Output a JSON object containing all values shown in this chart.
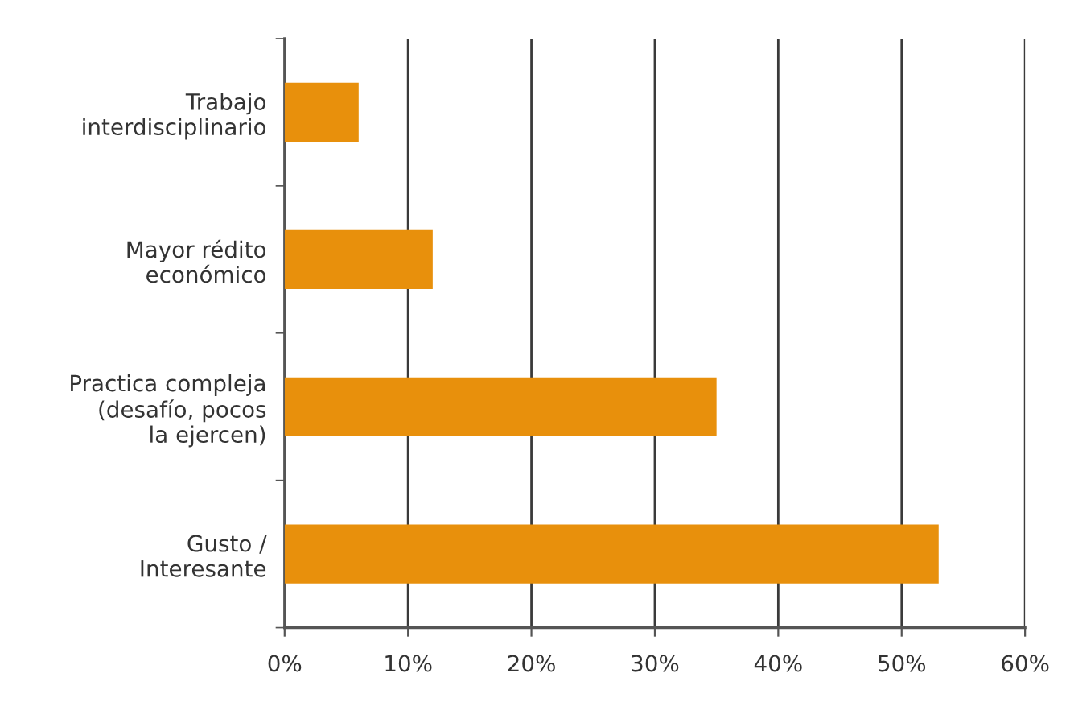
{
  "chart_data": {
    "type": "bar",
    "orientation": "horizontal",
    "categories": [
      "Trabajo\ninterdisciplinario",
      "Mayor rédito\neconómico",
      "Practica compleja\n(desafío, pocos\nla ejercen)",
      "Gusto /\nInteresante"
    ],
    "values": [
      6,
      12,
      35,
      53
    ],
    "color": "#e8900c",
    "xlim": [
      0,
      60
    ],
    "xticks": [
      {
        "value": 0,
        "label": "0%"
      },
      {
        "value": 10,
        "label": "10%"
      },
      {
        "value": 20,
        "label": "20%"
      },
      {
        "value": 30,
        "label": "30%"
      },
      {
        "value": 40,
        "label": "40%"
      },
      {
        "value": 50,
        "label": "50%"
      },
      {
        "value": 60,
        "label": "60%"
      }
    ],
    "grid": "x"
  }
}
